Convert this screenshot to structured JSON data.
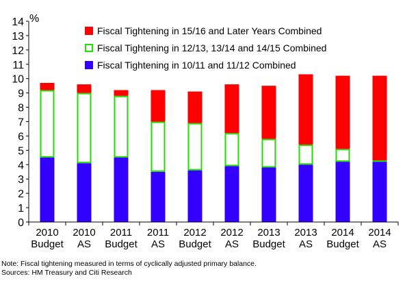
{
  "chart_data": {
    "type": "bar",
    "stacked": true,
    "ylabel": "%",
    "ylim": [
      0,
      14
    ],
    "yticks": [
      0,
      1,
      2,
      3,
      4,
      5,
      6,
      7,
      8,
      9,
      10,
      11,
      12,
      13,
      14
    ],
    "grid": false,
    "legend_position": "top-right",
    "categories": [
      [
        "2010",
        "Budget"
      ],
      [
        "2010",
        "AS"
      ],
      [
        "2011",
        "Budget"
      ],
      [
        "2011",
        "AS"
      ],
      [
        "2012",
        "Budget"
      ],
      [
        "2012",
        "AS"
      ],
      [
        "2013",
        "Budget"
      ],
      [
        "2013",
        "AS"
      ],
      [
        "2014",
        "Budget"
      ],
      [
        "2014",
        "AS"
      ]
    ],
    "series": [
      {
        "name": "Fiscal Tightening in 10/11 and 11/12 Combined",
        "color": "#3300ff",
        "style": "filled",
        "values": [
          4.5,
          4.1,
          4.5,
          3.5,
          3.6,
          3.9,
          3.8,
          4.0,
          4.2,
          4.2
        ]
      },
      {
        "name": "Fiscal Tightening in 12/13, 13/14 and 14/15 Combined",
        "color": "#22dd00",
        "style": "outline",
        "values": [
          4.7,
          4.9,
          4.3,
          3.5,
          3.3,
          2.3,
          2.0,
          1.4,
          0.9,
          0.1
        ]
      },
      {
        "name": "Fiscal Tightening in 15/16 and Later Years Combined",
        "color": "#ff0000",
        "style": "filled",
        "values": [
          0.5,
          0.6,
          0.4,
          2.2,
          2.2,
          3.4,
          3.7,
          4.9,
          5.1,
          5.9
        ]
      }
    ]
  },
  "legend_order": [
    2,
    1,
    0
  ],
  "notes": {
    "note": "Note: Fiscal tightening measured in terms of cyclically adjusted primary balance.",
    "sources": "Sources: HM Treasury and Citi Research"
  }
}
